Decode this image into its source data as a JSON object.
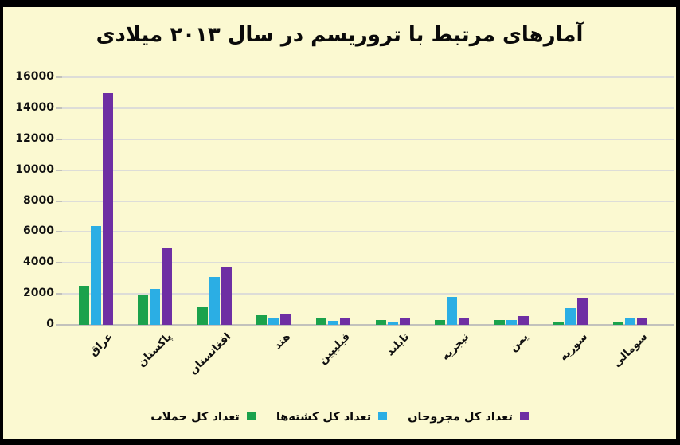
{
  "frame": {
    "background_color": "#FBF9D1",
    "border_color": "#000000"
  },
  "chart_data": {
    "type": "bar",
    "direction": "rtl",
    "title": "آمارهای مرتبط با تروریسم در سال ۲۰۱۳ میلادی",
    "xlabel": "",
    "ylabel": "",
    "categories": [
      "عراق",
      "پاکستان",
      "افغانستان",
      "هند",
      "فیلیپین",
      "تایلند",
      "نیجریه",
      "یمن",
      "سوریه",
      "سومالی"
    ],
    "series": [
      {
        "name": "تعداد کل حملات",
        "color": "#1BA24C",
        "values": [
          2500,
          1920,
          1145,
          620,
          450,
          320,
          300,
          295,
          210,
          195
        ]
      },
      {
        "name": "تعداد کل کشته‌ها",
        "color": "#2BAEE4",
        "values": [
          6380,
          2315,
          3110,
          405,
          270,
          130,
          1820,
          290,
          1075,
          405
        ]
      },
      {
        "name": "تعداد کل مجروحان",
        "color": "#6E2FA3",
        "values": [
          14950,
          4990,
          3715,
          700,
          400,
          400,
          460,
          550,
          1770,
          440
        ]
      }
    ],
    "ylim": [
      0,
      16000
    ],
    "ytick_step": 2000,
    "ytick_labels": [
      "0",
      "2000",
      "4000",
      "6000",
      "8000",
      "10000",
      "12000",
      "14000",
      "16000"
    ],
    "grid": true,
    "gridline_color": "#DDDDD8",
    "axis_line_color": "#C2C2BC",
    "legend_position": "bottom",
    "legend_order_left_to_right": [
      "تعداد کل حملات",
      "تعداد کل کشته‌ها",
      "تعداد کل مجروحان"
    ],
    "legend_swatch_side": "right-of-label",
    "xtick_rotation_deg": -45
  }
}
